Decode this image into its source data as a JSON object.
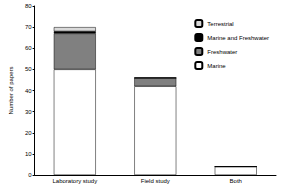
{
  "chart_data": {
    "type": "bar",
    "categories": [
      "Laboratory study",
      "Field study",
      "Both"
    ],
    "y_label": "Number of papers",
    "series": [
      {
        "name": "Marine",
        "color": "#ffffff",
        "values": [
          50,
          42,
          4
        ]
      },
      {
        "name": "Freshwater",
        "color": "#808080",
        "values": [
          17,
          4,
          0
        ]
      },
      {
        "name": "Marine and Freshwater",
        "color": "#000000",
        "values": [
          1,
          0,
          0
        ]
      },
      {
        "name": "Terrestrial",
        "color": "#d9d9d9",
        "values": [
          2,
          0,
          0
        ]
      }
    ],
    "stacked": true,
    "ylim": [
      0,
      80
    ],
    "yticks": [
      0,
      10,
      20,
      30,
      40,
      50,
      60,
      70,
      80
    ],
    "grid": false,
    "legend": "top-right"
  }
}
